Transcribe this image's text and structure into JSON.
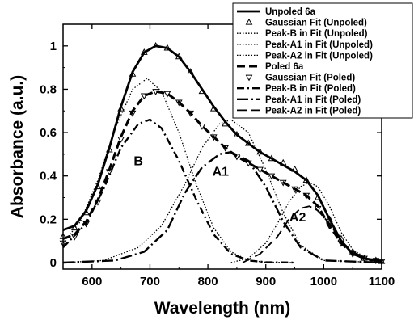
{
  "chart_data": {
    "type": "line",
    "title": "",
    "xlabel": "Wavelength (nm)",
    "ylabel": "Absorbance (a.u.)",
    "xlim": [
      550,
      1100
    ],
    "ylim": [
      -0.03,
      1.1
    ],
    "xticks": [
      600,
      700,
      800,
      900,
      1000,
      1100
    ],
    "yticks": [
      0,
      0.2,
      0.4,
      0.6,
      0.8,
      1
    ],
    "ytick_labels": [
      "0",
      "0.2",
      "0.4",
      "0.6",
      "0.8",
      "1"
    ],
    "legend_position": "top-right",
    "annotations": [
      {
        "text": "B",
        "x": 680,
        "y": 0.45
      },
      {
        "text": "A1",
        "x": 822,
        "y": 0.4
      },
      {
        "text": "A2",
        "x": 955,
        "y": 0.19
      }
    ],
    "series": [
      {
        "name": "Unpoled 6a",
        "style": "solid-thick",
        "x": [
          550,
          570,
          590,
          610,
          630,
          650,
          670,
          690,
          710,
          730,
          750,
          770,
          790,
          810,
          830,
          850,
          870,
          890,
          910,
          930,
          950,
          970,
          990,
          1010,
          1030,
          1050,
          1070,
          1090,
          1100
        ],
        "y": [
          0.15,
          0.17,
          0.24,
          0.36,
          0.53,
          0.72,
          0.88,
          0.97,
          1.0,
          0.99,
          0.95,
          0.88,
          0.8,
          0.72,
          0.65,
          0.59,
          0.55,
          0.51,
          0.48,
          0.45,
          0.42,
          0.38,
          0.31,
          0.2,
          0.1,
          0.04,
          0.02,
          0.01,
          0.005
        ]
      },
      {
        "name": "Gaussian Fit (Unpoled)",
        "style": "marker-triangle-up",
        "x": [
          550,
          570,
          590,
          610,
          630,
          650,
          670,
          690,
          710,
          730,
          750,
          770,
          790,
          810,
          830,
          850,
          870,
          890,
          910,
          930,
          950,
          970,
          990,
          1010,
          1030,
          1050,
          1070,
          1090,
          1100
        ],
        "y": [
          0.12,
          0.16,
          0.23,
          0.35,
          0.52,
          0.71,
          0.87,
          0.97,
          1.0,
          0.99,
          0.95,
          0.88,
          0.79,
          0.71,
          0.64,
          0.59,
          0.55,
          0.51,
          0.48,
          0.46,
          0.43,
          0.38,
          0.3,
          0.2,
          0.11,
          0.05,
          0.02,
          0.01,
          0.005
        ]
      },
      {
        "name": "Peak-B in Fit (Unpoled)",
        "style": "dotted",
        "x": [
          550,
          580,
          610,
          640,
          670,
          695,
          720,
          750,
          780,
          810,
          840,
          870,
          900,
          950
        ],
        "y": [
          0.09,
          0.19,
          0.38,
          0.62,
          0.8,
          0.85,
          0.79,
          0.6,
          0.36,
          0.16,
          0.05,
          0.01,
          0.002,
          0
        ]
      },
      {
        "name": "Peak-A1 in Fit (Unpoled)",
        "style": "dotted",
        "x": [
          550,
          620,
          680,
          720,
          760,
          790,
          820,
          840,
          870,
          900,
          930,
          960,
          1000,
          1100
        ],
        "y": [
          0,
          0.01,
          0.07,
          0.17,
          0.36,
          0.53,
          0.64,
          0.66,
          0.6,
          0.43,
          0.23,
          0.08,
          0.01,
          0
        ]
      },
      {
        "name": "Peak-A2 in Fit (Unpoled)",
        "style": "dotted",
        "x": [
          840,
          870,
          900,
          920,
          940,
          960,
          975,
          990,
          1010,
          1030,
          1050,
          1080,
          1100
        ],
        "y": [
          0,
          0.02,
          0.09,
          0.18,
          0.28,
          0.35,
          0.37,
          0.35,
          0.26,
          0.14,
          0.06,
          0.01,
          0
        ]
      },
      {
        "name": "Poled 6a",
        "style": "dashed-thick",
        "x": [
          550,
          570,
          590,
          610,
          630,
          650,
          670,
          690,
          710,
          730,
          750,
          770,
          790,
          810,
          830,
          850,
          870,
          890,
          910,
          930,
          950,
          970,
          990,
          1010,
          1030,
          1050,
          1070,
          1090,
          1100
        ],
        "y": [
          0.11,
          0.13,
          0.19,
          0.29,
          0.43,
          0.58,
          0.7,
          0.77,
          0.79,
          0.78,
          0.74,
          0.69,
          0.63,
          0.58,
          0.53,
          0.49,
          0.46,
          0.43,
          0.4,
          0.37,
          0.34,
          0.31,
          0.26,
          0.17,
          0.09,
          0.04,
          0.02,
          0.01,
          0.005
        ]
      },
      {
        "name": "Gaussian Fit (Poled)",
        "style": "marker-triangle-down",
        "x": [
          550,
          570,
          590,
          610,
          630,
          650,
          670,
          690,
          710,
          730,
          750,
          770,
          790,
          810,
          830,
          850,
          870,
          890,
          910,
          930,
          950,
          970,
          990,
          1010,
          1030,
          1050,
          1070,
          1090,
          1100
        ],
        "y": [
          0.09,
          0.12,
          0.18,
          0.28,
          0.42,
          0.57,
          0.69,
          0.77,
          0.79,
          0.78,
          0.74,
          0.69,
          0.63,
          0.58,
          0.53,
          0.49,
          0.46,
          0.43,
          0.4,
          0.37,
          0.34,
          0.31,
          0.25,
          0.17,
          0.09,
          0.04,
          0.02,
          0.01,
          0.005
        ]
      },
      {
        "name": "Peak-B in Fit (Poled)",
        "style": "dash-dot",
        "x": [
          550,
          590,
          620,
          650,
          680,
          700,
          720,
          750,
          780,
          810,
          840,
          870,
          900,
          950
        ],
        "y": [
          0.07,
          0.18,
          0.34,
          0.53,
          0.64,
          0.66,
          0.62,
          0.47,
          0.29,
          0.13,
          0.04,
          0.01,
          0.002,
          0
        ]
      },
      {
        "name": "Peak-A1 in Fit (Poled)",
        "style": "long-dash-dot",
        "x": [
          550,
          640,
          690,
          730,
          760,
          790,
          820,
          840,
          870,
          900,
          930,
          960,
          1000,
          1100
        ],
        "y": [
          0,
          0.01,
          0.05,
          0.15,
          0.32,
          0.44,
          0.5,
          0.51,
          0.47,
          0.35,
          0.19,
          0.07,
          0.01,
          0
        ]
      },
      {
        "name": "Peak-A2 in Fit (Poled)",
        "style": "long-dash",
        "x": [
          860,
          890,
          920,
          940,
          960,
          975,
          990,
          1010,
          1030,
          1050,
          1080,
          1100
        ],
        "y": [
          0,
          0.04,
          0.12,
          0.2,
          0.25,
          0.26,
          0.24,
          0.18,
          0.1,
          0.05,
          0.01,
          0
        ]
      }
    ]
  }
}
